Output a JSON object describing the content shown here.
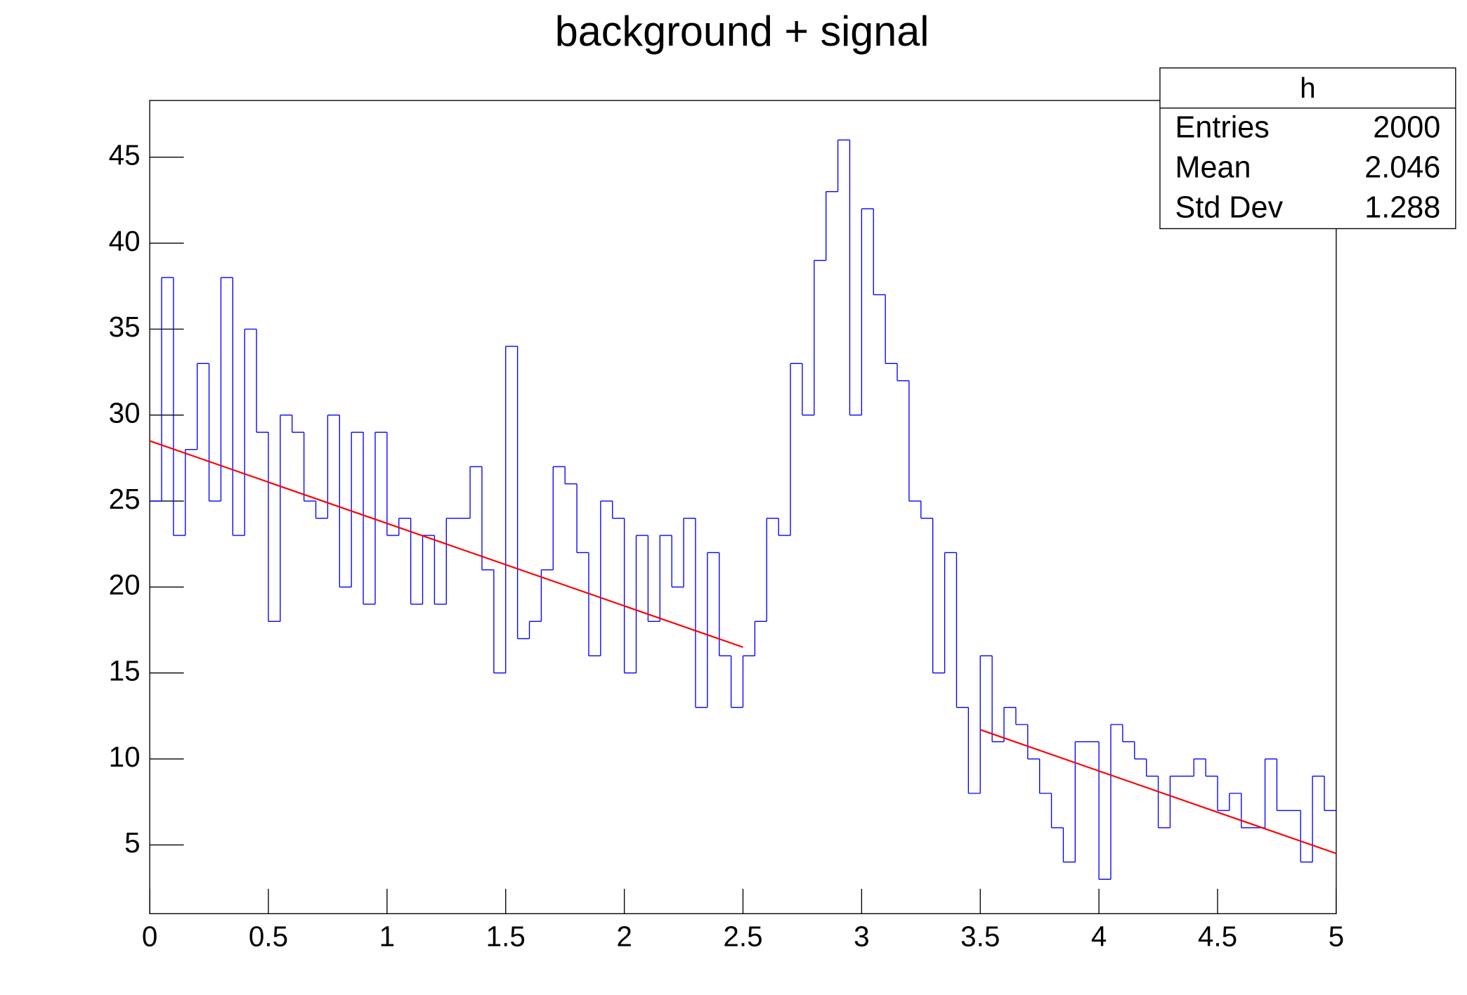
{
  "chart_data": {
    "type": "histogram",
    "title": "background + signal",
    "bins": [
      0,
      0.05,
      0.1,
      0.15,
      0.2,
      0.25,
      0.3,
      0.35,
      0.4,
      0.45,
      0.5,
      0.55,
      0.6,
      0.65,
      0.7,
      0.75,
      0.8,
      0.85,
      0.9,
      0.95,
      1,
      1.05,
      1.1,
      1.15,
      1.2,
      1.25,
      1.3,
      1.35,
      1.4,
      1.45,
      1.5,
      1.55,
      1.6,
      1.65,
      1.7,
      1.75,
      1.8,
      1.85,
      1.9,
      1.95,
      2,
      2.05,
      2.1,
      2.15,
      2.2,
      2.25,
      2.3,
      2.35,
      2.4,
      2.45,
      2.5,
      2.55,
      2.6,
      2.65,
      2.7,
      2.75,
      2.8,
      2.85,
      2.9,
      2.95,
      3,
      3.05,
      3.1,
      3.15,
      3.2,
      3.25,
      3.3,
      3.35,
      3.4,
      3.45,
      3.5,
      3.55,
      3.6,
      3.65,
      3.7,
      3.75,
      3.8,
      3.85,
      3.9,
      3.95,
      4,
      4.05,
      4.1,
      4.15,
      4.2,
      4.25,
      4.3,
      4.35,
      4.4,
      4.45,
      4.5,
      4.55,
      4.6,
      4.65,
      4.7,
      4.75,
      4.8,
      4.85,
      4.9,
      4.95,
      5
    ],
    "values": [
      25,
      38,
      23,
      28,
      33,
      25,
      38,
      23,
      35,
      29,
      18,
      30,
      29,
      25,
      24,
      30,
      20,
      29,
      19,
      29,
      23,
      24,
      19,
      23,
      19,
      24,
      24,
      27,
      21,
      15,
      34,
      17,
      18,
      21,
      27,
      26,
      22,
      16,
      25,
      24,
      15,
      23,
      18,
      23,
      20,
      24,
      13,
      22,
      16,
      13,
      16,
      18,
      24,
      23,
      33,
      30,
      39,
      43,
      46,
      30,
      42,
      37,
      33,
      32,
      25,
      24,
      15,
      22,
      13,
      8,
      16,
      11,
      13,
      12,
      10,
      8,
      6,
      4,
      11,
      11,
      3,
      12,
      11,
      10,
      9,
      6,
      9,
      9,
      10,
      9,
      7,
      8,
      6,
      6,
      10,
      7,
      7,
      4,
      9,
      7
    ],
    "color": "#0000ff",
    "fit": {
      "color": "#ff0000",
      "x": [
        0,
        2.5,
        3,
        3.5,
        5
      ],
      "values": [
        28.5,
        16.5,
        null,
        11.7,
        4.5
      ]
    },
    "xlim": [
      0,
      5
    ],
    "xticks": [
      0,
      0.5,
      1,
      1.5,
      2,
      2.5,
      3,
      3.5,
      4,
      4.5,
      5
    ],
    "ylim": [
      1,
      48.3
    ],
    "yticks": [
      5,
      10,
      15,
      20,
      25,
      30,
      35,
      40,
      45
    ],
    "stats": {
      "title": "h",
      "rows": [
        [
          "Entries",
          2000
        ],
        [
          "Mean",
          2.046
        ],
        [
          "Std Dev",
          1.288
        ]
      ]
    }
  }
}
